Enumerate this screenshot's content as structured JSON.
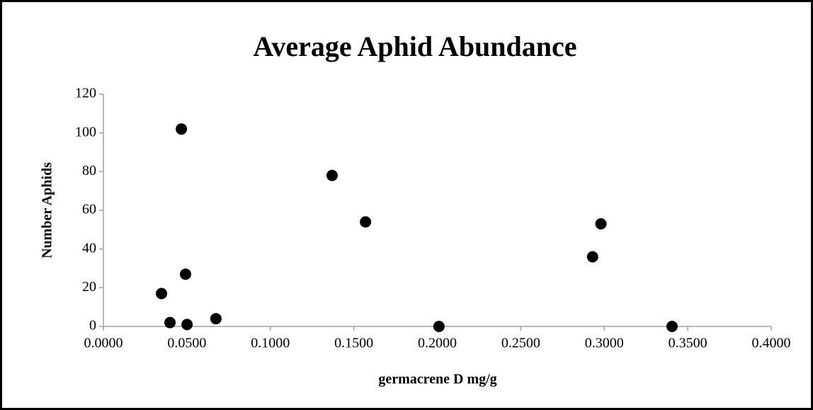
{
  "chart_data": {
    "type": "scatter",
    "title": "Average Aphid Abundance",
    "x_label": "germacrene D mg/g",
    "y_label": "Number Aphids",
    "color": "#000000",
    "grid": false,
    "x": [
      0.0348,
      0.0399,
      0.0467,
      0.0492,
      0.0501,
      0.0674,
      0.137,
      0.157,
      0.201,
      0.293,
      0.298,
      0.3406
    ],
    "values": [
      17,
      2,
      102,
      27,
      1,
      4,
      78,
      54,
      0,
      36,
      53,
      0
    ],
    "xlim": [
      0,
      0.4
    ],
    "xticks": [
      {
        "value": 0,
        "label": "0.0000"
      },
      {
        "value": 0.05,
        "label": "0.0500"
      },
      {
        "value": 0.1,
        "label": "0.1000"
      },
      {
        "value": 0.15,
        "label": "0.1500"
      },
      {
        "value": 0.2,
        "label": "0.2000"
      },
      {
        "value": 0.25,
        "label": "0.2500"
      },
      {
        "value": 0.3,
        "label": "0.3000"
      },
      {
        "value": 0.35,
        "label": "0.3500"
      },
      {
        "value": 0.4,
        "label": "0.4000"
      }
    ],
    "ylim": [
      0,
      120
    ],
    "yticks": [
      0,
      20,
      40,
      60,
      80,
      100,
      120
    ]
  }
}
